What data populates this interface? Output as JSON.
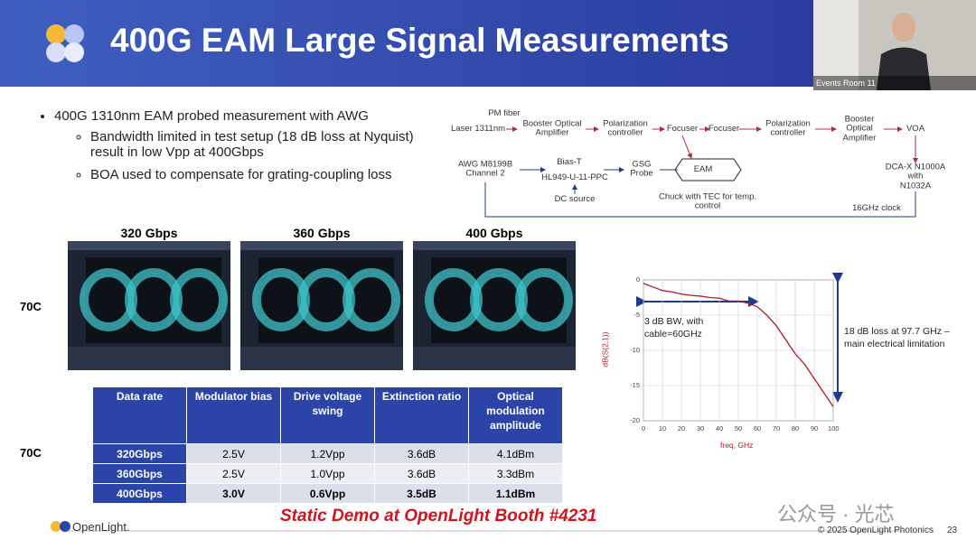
{
  "header": {
    "title": "400G EAM Large Signal Measurements",
    "video_caption": "Events Room 11"
  },
  "bullets": [
    {
      "text": "400G 1310nm EAM probed measurement with AWG",
      "sub": [
        "Bandwidth limited in test setup (18 dB loss at Nyquist) result in low Vpp at 400Gbps",
        "BOA used to compensate for grating-coupling loss"
      ]
    }
  ],
  "setup_diagram": {
    "nodes": [
      "PM fiber",
      "Laser 1311nm",
      "Booster Optical\nAmplifier",
      "Polarization\ncontroller",
      "Focuser",
      "Focuser",
      "Polarization\ncontroller",
      "Booster\nOptical\nAmplifier",
      "VOA",
      "AWG M8199B\nChannel 2",
      "Bias-T",
      "HL949-U-11-PPC",
      "DC source",
      "GSG\nProbe",
      "EAM",
      "Chuck with TEC for temp.\ncontrol",
      "DCA-X N1000A with\nN1032A",
      "16GHz clock"
    ]
  },
  "eye_diagrams": {
    "row_label": "70C",
    "rates": [
      "320 Gbps",
      "360 Gbps",
      "400 Gbps"
    ]
  },
  "table": {
    "row_label": "70C",
    "header": [
      "Data rate",
      "Modulator bias",
      "Drive voltage swing",
      "Extinction ratio",
      "Optical modulation amplitude"
    ],
    "rows": [
      [
        "320Gbps",
        "2.5V",
        "1.2Vpp",
        "3.6dB",
        "4.1dBm"
      ],
      [
        "360Gbps",
        "2.5V",
        "1.0Vpp",
        "3.6dB",
        "3.3dBm"
      ],
      [
        "400Gbps",
        "3.0V",
        "0.6Vpp",
        "3.5dB",
        "1.1dBm"
      ]
    ]
  },
  "plot": {
    "type": "line",
    "x_label": "freq, GHz",
    "y_label": "dB(S(2,1))",
    "x": [
      0,
      5,
      10,
      15,
      20,
      25,
      30,
      35,
      40,
      45,
      50,
      55,
      60,
      65,
      70,
      75,
      80,
      85,
      90,
      95,
      100
    ],
    "values": [
      -0.5,
      -1,
      -1.5,
      -1.7,
      -2,
      -2.2,
      -2.3,
      -2.5,
      -2.6,
      -3,
      -3,
      -3.3,
      -3.8,
      -5,
      -6.5,
      -8.5,
      -10.5,
      -12,
      -14,
      -16,
      -18
    ],
    "color": "#b01c28",
    "xlim": [
      0,
      100
    ],
    "xticks": [
      0,
      10,
      20,
      30,
      40,
      50,
      60,
      70,
      80,
      90,
      100
    ],
    "ylim": [
      -20,
      0
    ],
    "yticks": [
      0,
      -5,
      -10,
      -15,
      -20
    ],
    "grid": true,
    "annotations": [
      "3 dB BW, with\ncable=60GHz",
      "18 dB loss at 97.7 GHz –\nmain electrical limitation"
    ]
  },
  "footer": {
    "logo": "OpenLight.",
    "demo": "Static Demo at OpenLight Booth #4231",
    "copyright": "© 2025 OpenLight Photonics",
    "page": "23",
    "watermark": "公众号 · 光芯"
  }
}
